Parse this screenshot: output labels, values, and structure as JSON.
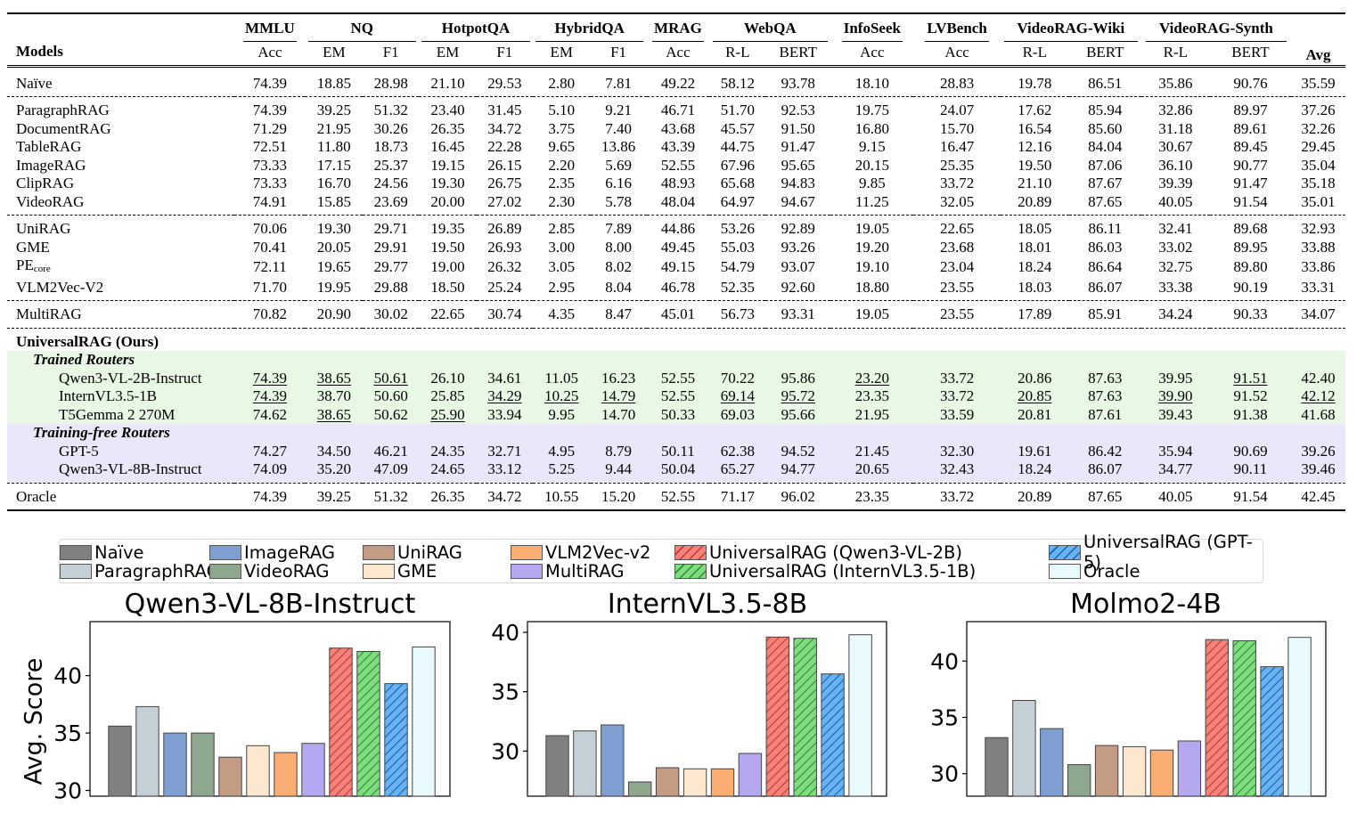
{
  "table": {
    "models_header": "Models",
    "avg_header": "Avg",
    "datasets": [
      {
        "name": "MMLU",
        "metrics": [
          "Acc"
        ]
      },
      {
        "name": "NQ",
        "metrics": [
          "EM",
          "F1"
        ]
      },
      {
        "name": "HotpotQA",
        "metrics": [
          "EM",
          "F1"
        ]
      },
      {
        "name": "HybridQA",
        "metrics": [
          "EM",
          "F1"
        ]
      },
      {
        "name": "MRAG",
        "metrics": [
          "Acc"
        ]
      },
      {
        "name": "WebQA",
        "metrics": [
          "R-L",
          "BERT"
        ]
      },
      {
        "name": "InfoSeek",
        "metrics": [
          "Acc"
        ]
      },
      {
        "name": "LVBench",
        "metrics": [
          "Acc"
        ]
      },
      {
        "name": "VideoRAG-Wiki",
        "metrics": [
          "R-L",
          "BERT"
        ]
      },
      {
        "name": "VideoRAG-Synth",
        "metrics": [
          "R-L",
          "BERT"
        ]
      }
    ],
    "rows": [
      {
        "name": "Naïve",
        "values": [
          "74.39",
          "18.85",
          "28.98",
          "21.10",
          "29.53",
          "2.80",
          "7.81",
          "49.22",
          "58.12",
          "93.78",
          "18.10",
          "28.83",
          "19.78",
          "86.51",
          "35.86",
          "90.76",
          "35.59"
        ],
        "group_end": "double"
      },
      {
        "name": "ParagraphRAG",
        "values": [
          "74.39",
          "39.25",
          "51.32",
          "23.40",
          "31.45",
          "5.10",
          "9.21",
          "46.71",
          "51.70",
          "92.53",
          "19.75",
          "24.07",
          "17.62",
          "85.94",
          "32.86",
          "89.97",
          "37.26"
        ]
      },
      {
        "name": "DocumentRAG",
        "values": [
          "71.29",
          "21.95",
          "30.26",
          "26.35",
          "34.72",
          "3.75",
          "7.40",
          "43.68",
          "45.57",
          "91.50",
          "16.80",
          "15.70",
          "16.54",
          "85.60",
          "31.18",
          "89.61",
          "32.26"
        ]
      },
      {
        "name": "TableRAG",
        "values": [
          "72.51",
          "11.80",
          "18.73",
          "16.45",
          "22.28",
          "9.65",
          "13.86",
          "43.39",
          "44.75",
          "91.47",
          "9.15",
          "16.47",
          "12.16",
          "84.04",
          "30.67",
          "89.45",
          "29.45"
        ]
      },
      {
        "name": "ImageRAG",
        "values": [
          "73.33",
          "17.15",
          "25.37",
          "19.15",
          "26.15",
          "2.20",
          "5.69",
          "52.55",
          "67.96",
          "95.65",
          "20.15",
          "25.35",
          "19.50",
          "87.06",
          "36.10",
          "90.77",
          "35.04"
        ]
      },
      {
        "name": "ClipRAG",
        "values": [
          "73.33",
          "16.70",
          "24.56",
          "19.30",
          "26.75",
          "2.35",
          "6.16",
          "48.93",
          "65.68",
          "94.83",
          "9.85",
          "33.72",
          "21.10",
          "87.67",
          "39.39",
          "91.47",
          "35.18"
        ]
      },
      {
        "name": "VideoRAG",
        "values": [
          "74.91",
          "15.85",
          "23.69",
          "20.00",
          "27.02",
          "2.30",
          "5.78",
          "48.04",
          "64.97",
          "94.67",
          "11.25",
          "32.05",
          "20.89",
          "87.65",
          "40.05",
          "91.54",
          "35.01"
        ],
        "group_end": "dash"
      },
      {
        "name": "UniRAG",
        "values": [
          "70.06",
          "19.30",
          "29.71",
          "19.35",
          "26.89",
          "2.85",
          "7.89",
          "44.86",
          "53.26",
          "92.89",
          "19.05",
          "22.65",
          "18.05",
          "86.11",
          "32.41",
          "89.68",
          "32.93"
        ]
      },
      {
        "name": "GME",
        "values": [
          "70.41",
          "20.05",
          "29.91",
          "19.50",
          "26.93",
          "3.00",
          "8.00",
          "49.45",
          "55.03",
          "93.26",
          "19.20",
          "23.68",
          "18.01",
          "86.03",
          "33.02",
          "89.95",
          "33.88"
        ]
      },
      {
        "name": "PE",
        "name_sub": "core",
        "values": [
          "72.11",
          "19.65",
          "29.77",
          "19.00",
          "26.32",
          "3.05",
          "8.02",
          "49.15",
          "54.79",
          "93.07",
          "19.10",
          "23.04",
          "18.24",
          "86.64",
          "32.75",
          "89.80",
          "33.86"
        ]
      },
      {
        "name": "VLM2Vec-V2",
        "values": [
          "71.70",
          "19.95",
          "29.88",
          "18.50",
          "25.24",
          "2.95",
          "8.04",
          "46.78",
          "52.35",
          "92.60",
          "18.80",
          "23.55",
          "18.03",
          "86.07",
          "33.38",
          "90.19",
          "33.31"
        ],
        "group_end": "dash"
      },
      {
        "name": "MultiRAG",
        "values": [
          "70.82",
          "20.90",
          "30.02",
          "22.65",
          "30.74",
          "4.35",
          "8.47",
          "45.01",
          "56.73",
          "93.31",
          "19.05",
          "23.55",
          "17.89",
          "85.91",
          "34.24",
          "90.33",
          "34.07"
        ],
        "group_end": "dash"
      }
    ],
    "ours_title": "UniversalRAG (Ours)",
    "trained_title": "Trained Routers",
    "trained": [
      {
        "name": "Qwen3-VL-2B-Instruct",
        "values": [
          "74.39",
          "38.65",
          "50.61",
          "26.10",
          "34.61",
          "11.05",
          "16.23",
          "52.55",
          "70.22",
          "95.86",
          "23.20",
          "33.72",
          "20.86",
          "87.63",
          "39.95",
          "91.51",
          "42.40"
        ],
        "fmt": [
          "u",
          "u",
          "u",
          "b",
          "b",
          "b",
          "b",
          "b",
          "b",
          "b",
          "u",
          "b",
          "b",
          "b",
          "b",
          "u",
          "b"
        ]
      },
      {
        "name": "InternVL3.5-1B",
        "values": [
          "74.39",
          "38.70",
          "50.60",
          "25.85",
          "34.29",
          "10.25",
          "14.79",
          "52.55",
          "69.14",
          "95.72",
          "23.35",
          "33.72",
          "20.85",
          "87.63",
          "39.90",
          "91.52",
          "42.12"
        ],
        "fmt": [
          "u",
          "b",
          "",
          "",
          "u",
          "u",
          "u",
          "b",
          "u",
          "u",
          "b",
          "b",
          "u",
          "b",
          "u",
          "b",
          "u"
        ]
      },
      {
        "name": "T5Gemma 2 270M",
        "values": [
          "74.62",
          "38.65",
          "50.62",
          "25.90",
          "33.94",
          "9.95",
          "14.70",
          "50.33",
          "69.03",
          "95.66",
          "21.95",
          "33.59",
          "20.81",
          "87.61",
          "39.43",
          "91.38",
          "41.68"
        ],
        "fmt": [
          "b",
          "u",
          "b",
          "u",
          "",
          "",
          "",
          "",
          "",
          "",
          "",
          "",
          "",
          "",
          "",
          "",
          ""
        ]
      }
    ],
    "free_title": "Training-free Routers",
    "free": [
      {
        "name": "GPT-5",
        "values": [
          "74.27",
          "34.50",
          "46.21",
          "24.35",
          "32.71",
          "4.95",
          "8.79",
          "50.11",
          "62.38",
          "94.52",
          "21.45",
          "32.30",
          "19.61",
          "86.42",
          "35.94",
          "90.69",
          "39.26"
        ]
      },
      {
        "name": "Qwen3-VL-8B-Instruct",
        "values": [
          "74.09",
          "35.20",
          "47.09",
          "24.65",
          "33.12",
          "5.25",
          "9.44",
          "50.04",
          "65.27",
          "94.77",
          "20.65",
          "32.43",
          "18.24",
          "86.07",
          "34.77",
          "90.11",
          "39.46"
        ]
      }
    ],
    "oracle": {
      "name": "Oracle",
      "values": [
        "74.39",
        "39.25",
        "51.32",
        "26.35",
        "34.72",
        "10.55",
        "15.20",
        "52.55",
        "71.17",
        "96.02",
        "23.35",
        "33.72",
        "20.89",
        "87.65",
        "40.05",
        "91.54",
        "42.45"
      ]
    }
  },
  "legend": [
    {
      "label": "Naïve",
      "color": "#808080"
    },
    {
      "label": "ParagraphRAG",
      "color": "#c5cfd6"
    },
    {
      "label": "ImageRAG",
      "color": "#7f9fd3"
    },
    {
      "label": "VideoRAG",
      "color": "#8fa68f"
    },
    {
      "label": "UniRAG",
      "color": "#c49c84"
    },
    {
      "label": "GME",
      "color": "#fde8cf"
    },
    {
      "label": "VLM2Vec-v2",
      "color": "#fbae74"
    },
    {
      "label": "MultiRAG",
      "color": "#b6a8f0"
    },
    {
      "label": "UniversalRAG (Qwen3-VL-2B)",
      "color": "#f4827a",
      "hatch": "red"
    },
    {
      "label": "UniversalRAG (InternVL3.5-1B)",
      "color": "#7fdc7f",
      "hatch": "green"
    },
    {
      "label": "UniversalRAG (GPT-5)",
      "color": "#66b2f2",
      "hatch": "blue"
    },
    {
      "label": "Oracle",
      "color": "#e8fafc"
    }
  ],
  "chart_data": [
    {
      "type": "bar",
      "title": "Qwen3-VL-8B-Instruct",
      "ylabel": "Avg. Score",
      "xlabel": "",
      "ylim": [
        29.5,
        44.7
      ],
      "yticks": [
        30,
        35,
        40
      ],
      "categories": [
        "Naïve",
        "ParagraphRAG",
        "ImageRAG",
        "VideoRAG",
        "UniRAG",
        "GME",
        "VLM2Vec-v2",
        "MultiRAG",
        "UniversalRAG (Qwen3-VL-2B)",
        "UniversalRAG (InternVL3.5-1B)",
        "UniversalRAG (GPT-5)",
        "Oracle"
      ],
      "values": [
        35.6,
        37.3,
        35.0,
        35.0,
        32.9,
        33.9,
        33.3,
        34.1,
        42.4,
        42.1,
        39.3,
        42.5
      ]
    },
    {
      "type": "bar",
      "title": "InternVL3.5-8B",
      "ylabel": "",
      "xlabel": "",
      "ylim": [
        26.2,
        40.9
      ],
      "yticks": [
        30,
        35,
        40
      ],
      "categories": [
        "Naïve",
        "ParagraphRAG",
        "ImageRAG",
        "VideoRAG",
        "UniRAG",
        "GME",
        "VLM2Vec-v2",
        "MultiRAG",
        "UniversalRAG (Qwen3-VL-2B)",
        "UniversalRAG (InternVL3.5-1B)",
        "UniversalRAG (GPT-5)",
        "Oracle"
      ],
      "values": [
        31.3,
        31.7,
        32.2,
        27.4,
        28.6,
        28.5,
        28.5,
        29.8,
        39.6,
        39.5,
        36.5,
        39.8
      ]
    },
    {
      "type": "bar",
      "title": "Molmo2-4B",
      "ylabel": "",
      "xlabel": "",
      "ylim": [
        28.0,
        43.5
      ],
      "yticks": [
        30,
        35,
        40
      ],
      "categories": [
        "Naïve",
        "ParagraphRAG",
        "ImageRAG",
        "VideoRAG",
        "UniRAG",
        "GME",
        "VLM2Vec-v2",
        "MultiRAG",
        "UniversalRAG (Qwen3-VL-2B)",
        "UniversalRAG (InternVL3.5-1B)",
        "UniversalRAG (GPT-5)",
        "Oracle"
      ],
      "values": [
        33.2,
        36.5,
        34.0,
        30.8,
        32.5,
        32.4,
        32.1,
        32.9,
        41.9,
        41.8,
        39.5,
        42.1
      ]
    }
  ]
}
